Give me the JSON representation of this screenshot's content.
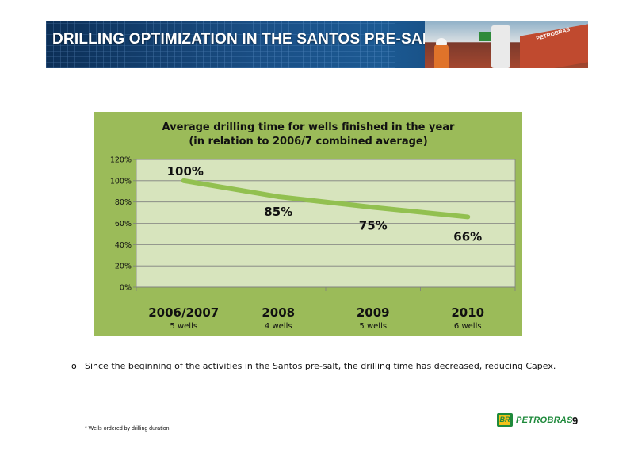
{
  "header": {
    "title": "DRILLING OPTIMIZATION IN THE SANTOS PRE-SALT",
    "photo_caption": "PETROBRAS"
  },
  "chart_data": {
    "type": "line",
    "title_line1": "Average drilling time for wells finished in the year",
    "title_line2": "(in relation to 2006/7 combined average)",
    "categories": [
      "2006/2007",
      "2008",
      "2009",
      "2010"
    ],
    "sublabels": [
      "5 wells",
      "4 wells",
      "5 wells",
      "6 wells"
    ],
    "values": [
      100,
      85,
      75,
      66
    ],
    "data_labels": [
      "100%",
      "85%",
      "75%",
      "66%"
    ],
    "y_ticks": [
      "0%",
      "20%",
      "40%",
      "60%",
      "80%",
      "100%",
      "120%"
    ],
    "ylim": [
      0,
      120
    ],
    "grid": true,
    "colors": {
      "background": "#9bbb59",
      "plot_area": "#d7e4bd",
      "line": "#92c050"
    }
  },
  "body": {
    "bullet_marker": "o",
    "bullet_text": "Since the beginning of the activities in the Santos pre-salt, the drilling time has decreased, reducing Capex."
  },
  "footer": {
    "footnote": "* Wells ordered by drilling duration.",
    "logo_mark": "BR",
    "logo_text": "PETROBRAS",
    "page_number": "9"
  }
}
